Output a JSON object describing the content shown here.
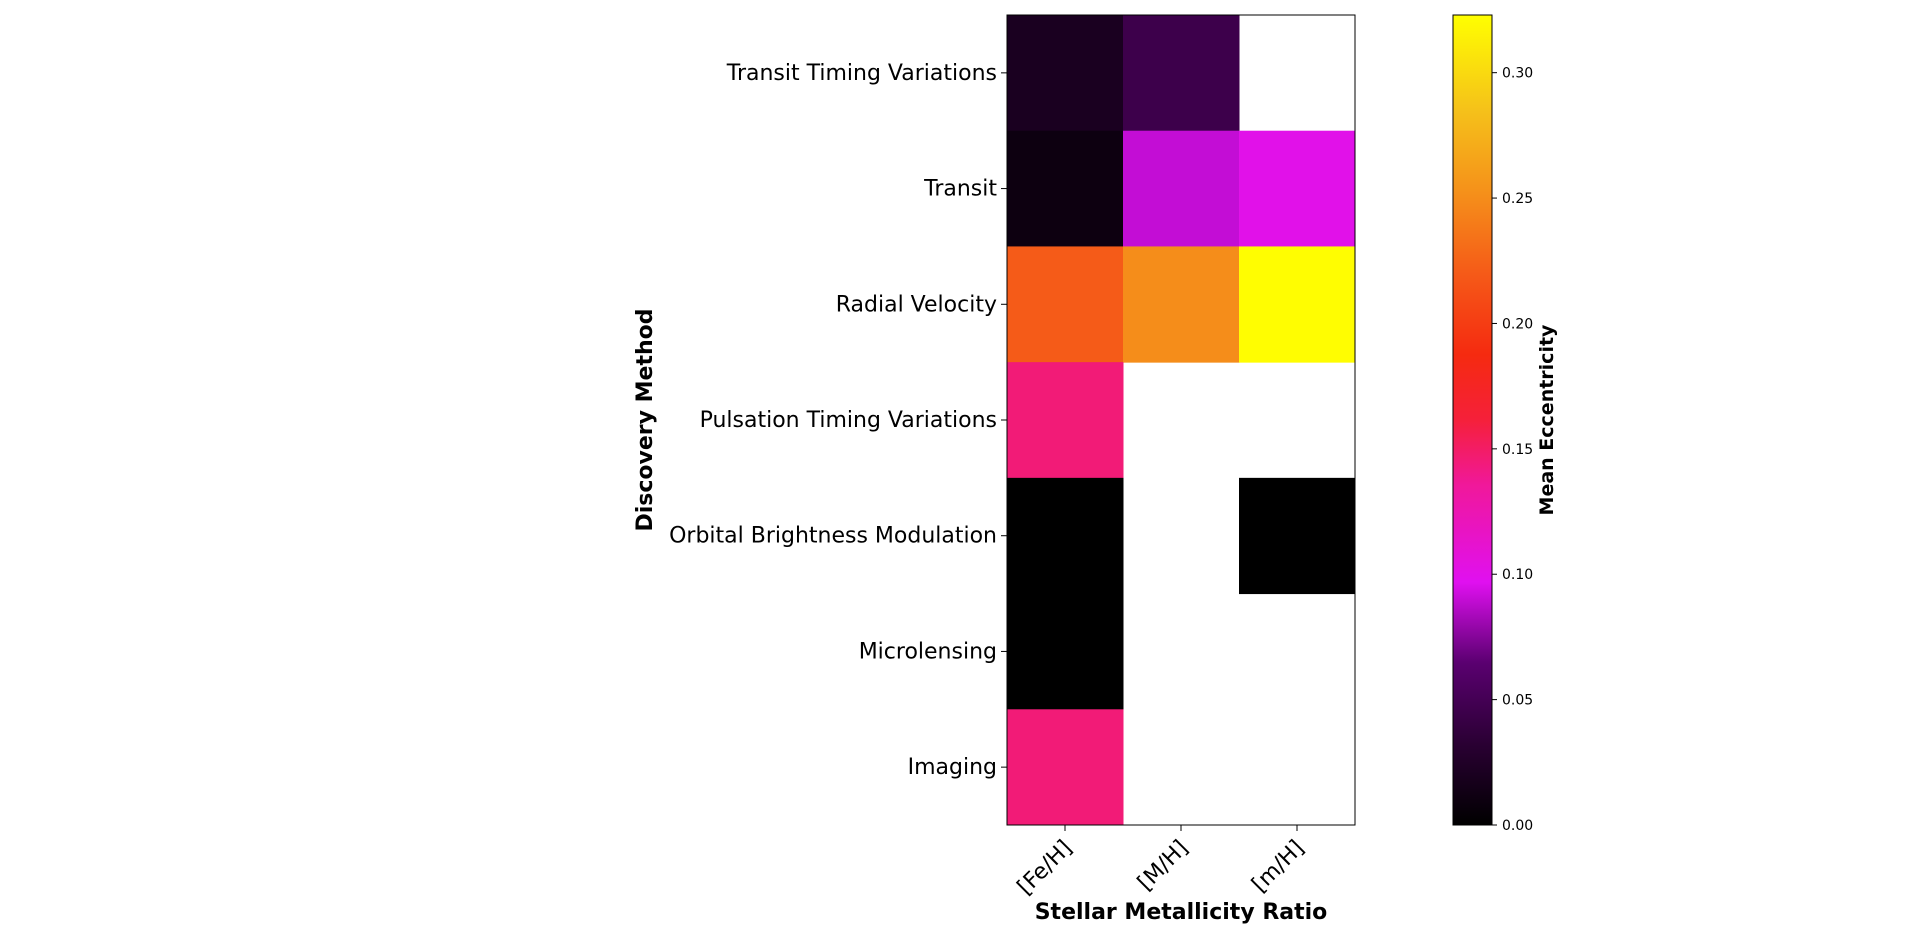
{
  "chart_data": {
    "type": "heatmap",
    "xlabel": "Stellar Metallicity Ratio",
    "ylabel": "Discovery Method",
    "columns": [
      "[Fe/H]",
      "[M/H]",
      "[m/H]"
    ],
    "rows": [
      "Transit Timing Variations",
      "Transit",
      "Radial Velocity",
      "Pulsation Timing Variations",
      "Orbital Brightness Modulation",
      "Microlensing",
      "Imaging"
    ],
    "values": [
      [
        0.02,
        0.045,
        null
      ],
      [
        0.01,
        0.09,
        0.1
      ],
      [
        0.22,
        0.25,
        0.322
      ],
      [
        0.145,
        null,
        null
      ],
      [
        0.0,
        null,
        0.0
      ],
      [
        0.0,
        null,
        null
      ],
      [
        0.145,
        null,
        null
      ]
    ],
    "colormap": "gnuplot2-like (black-purple-magenta-red-orange-yellow)",
    "colorbar": {
      "label": "Mean Eccentricity",
      "range": [
        0.0,
        0.323
      ],
      "ticks": [
        "0.00",
        "0.05",
        "0.10",
        "0.15",
        "0.20",
        "0.25",
        "0.30"
      ],
      "placement": "right"
    },
    "missing_value_color": "#ffffff",
    "grid": false
  }
}
